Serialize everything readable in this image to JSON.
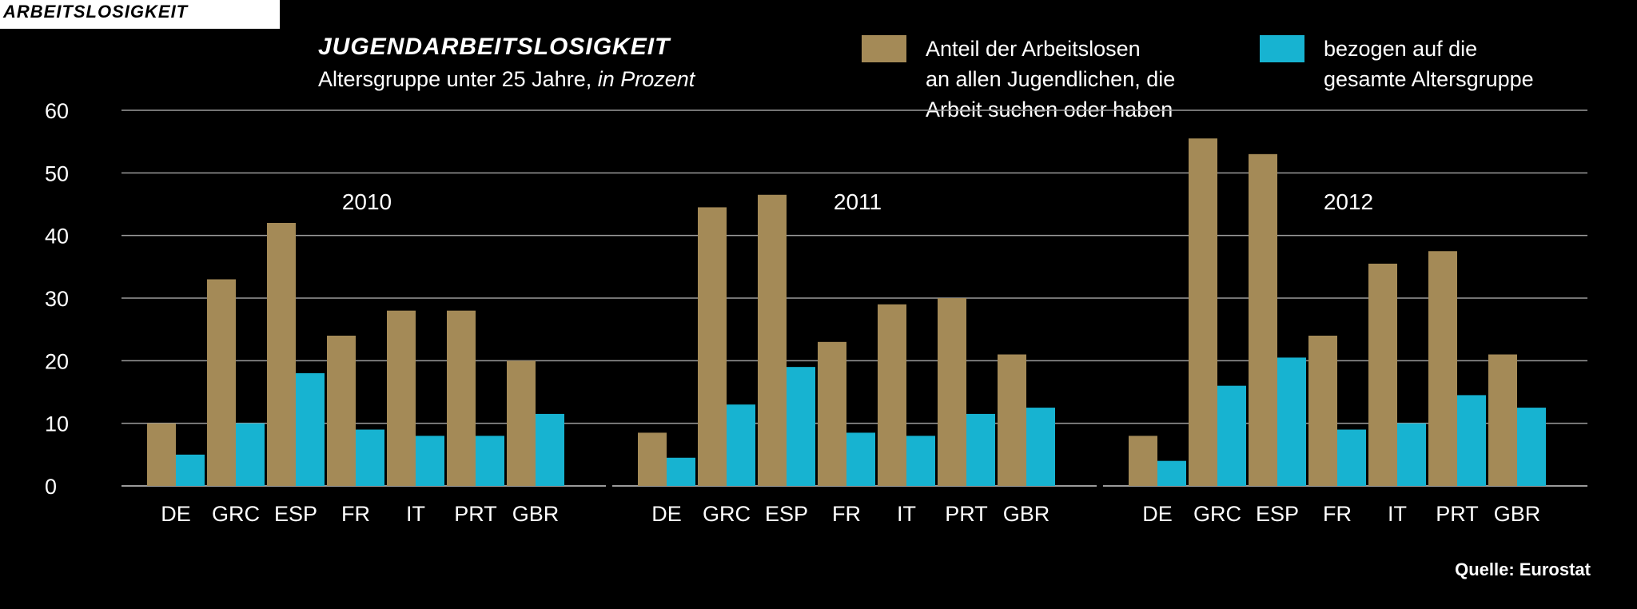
{
  "header_tag": "ARBEITSLOSIGKEIT",
  "title": "JUGENDARBEITSLOSIGKEIT",
  "subtitle_main": "Altersgruppe unter 25 Jahre, ",
  "subtitle_unit": "in Prozent",
  "legend": [
    {
      "color": "#a48a57",
      "lines": [
        "Anteil der Arbeitslosen",
        "an allen Jugendlichen, die",
        "Arbeit suchen oder haben"
      ]
    },
    {
      "color": "#17b3d1",
      "lines": [
        "bezogen auf die",
        "gesamte Altersgruppe"
      ]
    }
  ],
  "source": "Quelle: Eurostat",
  "chart_data": {
    "type": "bar",
    "ylim": [
      0,
      60
    ],
    "yticks": [
      0,
      10,
      20,
      30,
      40,
      50,
      60
    ],
    "grid": true,
    "legend_position": "top-right",
    "colors": {
      "share": "#a48a57",
      "total": "#17b3d1",
      "grid": "#9a9a9a"
    },
    "categories": [
      "DE",
      "GRC",
      "ESP",
      "FR",
      "IT",
      "PRT",
      "GBR"
    ],
    "groups": [
      {
        "year": "2010",
        "share": [
          10,
          33,
          42,
          24,
          28,
          28,
          20
        ],
        "total": [
          5,
          10,
          18,
          9,
          8,
          8,
          11.5
        ]
      },
      {
        "year": "2011",
        "share": [
          8.5,
          44.5,
          46.5,
          23,
          29,
          30,
          21
        ],
        "total": [
          4.5,
          13,
          19,
          8.5,
          8,
          11.5,
          12.5
        ]
      },
      {
        "year": "2012",
        "share": [
          8,
          55.5,
          53,
          24,
          35.5,
          37.5,
          21
        ],
        "total": [
          4,
          16,
          20.5,
          9,
          10,
          14.5,
          12.5
        ]
      }
    ]
  }
}
